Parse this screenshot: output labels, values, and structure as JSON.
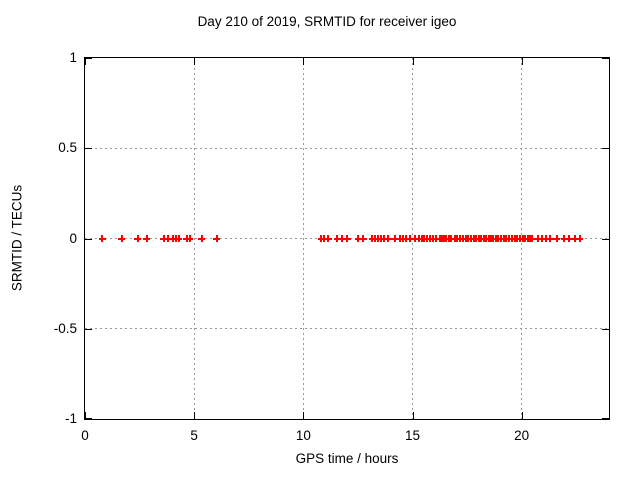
{
  "chart_data": {
    "type": "scatter",
    "title": "Day 210 of 2019, SRMTID for receiver igeo",
    "xlabel": "GPS time / hours",
    "ylabel": "SRMTID / TECUs",
    "xlim": [
      0,
      24
    ],
    "ylim": [
      -1,
      1
    ],
    "x_ticks": [
      0,
      5,
      10,
      15,
      20
    ],
    "x_tick_labels": [
      "0",
      "5",
      "10",
      "15",
      "20"
    ],
    "y_ticks": [
      -1,
      -0.5,
      0,
      0.5,
      1
    ],
    "y_tick_labels": [
      "-1",
      "-0.5",
      "0",
      "0.5",
      "1"
    ],
    "x_gridlines": [
      5,
      10,
      15,
      20
    ],
    "y_gridlines": [
      -0.5,
      0,
      0.5
    ],
    "grid": true,
    "grid_style": "dashed-gray",
    "legend_position": "none",
    "background_color": "#ffffff",
    "border_color": "#000000",
    "series": [
      {
        "name": "SRMTID",
        "marker": "plus",
        "color": "#ff0000",
        "y_constant": 0,
        "x": [
          0.78,
          1.69,
          2.42,
          2.83,
          3.61,
          3.79,
          4.02,
          4.16,
          4.29,
          4.66,
          4.79,
          5.34,
          6.03,
          10.82,
          10.96,
          11.14,
          11.55,
          11.78,
          12.01,
          12.51,
          12.74,
          13.15,
          13.29,
          13.42,
          13.56,
          13.7,
          13.88,
          14.2,
          14.43,
          14.57,
          14.7,
          14.89,
          15.11,
          15.3,
          15.43,
          15.53,
          15.66,
          15.8,
          15.94,
          16.07,
          16.26,
          16.35,
          16.44,
          16.53,
          16.67,
          16.76,
          16.94,
          17.03,
          17.17,
          17.31,
          17.44,
          17.53,
          17.67,
          17.81,
          17.9,
          18.04,
          18.13,
          18.26,
          18.36,
          18.49,
          18.58,
          18.68,
          18.81,
          18.9,
          19.04,
          19.18,
          19.27,
          19.41,
          19.54,
          19.68,
          19.77,
          19.91,
          20.05,
          20.14,
          20.27,
          20.37,
          20.46,
          20.73,
          20.91,
          21.1,
          21.28,
          21.6,
          21.96,
          22.19,
          22.42,
          22.65
        ]
      }
    ]
  }
}
